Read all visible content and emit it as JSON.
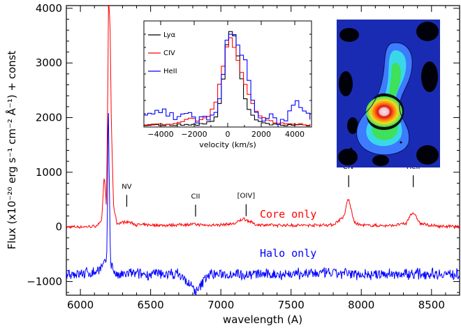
{
  "chart_data": [
    {
      "type": "line",
      "xlabel": "wavelength (A)",
      "ylabel": "Flux (x10⁻²⁰ erg s⁻¹ cm⁻² Å⁻¹) + const",
      "xlim": [
        5900,
        8700
      ],
      "ylim": [
        -1250,
        4050
      ],
      "x_ticks": [
        "6000",
        "6500",
        "7000",
        "7500",
        "8000",
        "8500"
      ],
      "y_ticks": [
        "−1000",
        "0",
        "1000",
        "2000",
        "3000",
        "4000"
      ],
      "line_labels": [
        {
          "text": "NV",
          "x": 6330,
          "y": 700
        },
        {
          "text": "CII",
          "x": 6820,
          "y": 520
        },
        {
          "text": "[OIV]",
          "x": 7180,
          "y": 530
        },
        {
          "text": "CIV",
          "x": 7910,
          "y": 1060
        },
        {
          "text": "HeII",
          "x": 8370,
          "y": 1060
        }
      ],
      "series": [
        {
          "name": "Core only",
          "color": "#ff0000",
          "x": [
            5900,
            6000,
            6100,
            6150,
            6170,
            6185,
            6195,
            6200,
            6205,
            6212,
            6220,
            6235,
            6260,
            6330,
            6400,
            6600,
            6800,
            6900,
            7000,
            7100,
            7160,
            7180,
            7250,
            7400,
            7600,
            7800,
            7880,
            7900,
            7910,
            7925,
            7950,
            8000,
            8200,
            8320,
            8350,
            8370,
            8390,
            8420,
            8500,
            8700
          ],
          "y": [
            0,
            0,
            10,
            80,
            950,
            400,
            2400,
            4050,
            4050,
            3600,
            2000,
            400,
            60,
            100,
            40,
            30,
            50,
            30,
            40,
            60,
            150,
            130,
            40,
            30,
            30,
            40,
            200,
            480,
            500,
            350,
            80,
            30,
            20,
            60,
            230,
            260,
            180,
            60,
            20,
            0
          ]
        },
        {
          "name": "Halo only",
          "color": "#0000ff",
          "x": [
            5900,
            6000,
            6100,
            6150,
            6175,
            6190,
            6198,
            6205,
            6215,
            6230,
            6260,
            6350,
            6500,
            6700,
            6830,
            6900,
            7100,
            7300,
            7500,
            7700,
            7900,
            8100,
            8300,
            8500,
            8700
          ],
          "y": [
            -850,
            -860,
            -830,
            -750,
            -680,
            -500,
            2600,
            900,
            -650,
            -750,
            -900,
            -850,
            -870,
            -860,
            -1200,
            -880,
            -850,
            -870,
            -860,
            -850,
            -860,
            -870,
            -860,
            -850,
            -870
          ]
        }
      ]
    },
    {
      "type": "line",
      "xlabel": "velocity (km/s)",
      "xlim": [
        -5000,
        5000
      ],
      "x_ticks": [
        "−4000",
        "−2000",
        "0",
        "2000",
        "4000"
      ],
      "legend_position": "top-left",
      "series": [
        {
          "name": "Lyα",
          "color": "#000000",
          "x": [
            -5000,
            -2000,
            -1500,
            -1000,
            -700,
            -400,
            -200,
            0,
            150,
            300,
            500,
            700,
            900,
            1200,
            1500,
            2000,
            2500,
            5000
          ],
          "y": [
            0.0,
            0.0,
            0.01,
            0.04,
            0.12,
            0.45,
            0.8,
            0.97,
            1.0,
            0.93,
            0.72,
            0.5,
            0.3,
            0.15,
            0.07,
            0.02,
            0.0,
            0.0
          ]
        },
        {
          "name": "CIV",
          "color": "#ff0000",
          "x": [
            -5000,
            -3000,
            -2200,
            -2000,
            -1600,
            -1200,
            -800,
            -500,
            -200,
            0,
            200,
            400,
            700,
            1000,
            1300,
            1700,
            2200,
            3000,
            5000
          ],
          "y": [
            0.0,
            0.02,
            0.08,
            0.03,
            0.05,
            0.1,
            0.25,
            0.5,
            0.8,
            0.93,
            0.85,
            0.75,
            0.55,
            0.4,
            0.25,
            0.12,
            0.05,
            0.02,
            0.0
          ]
        },
        {
          "name": "HeII",
          "color": "#0000ff",
          "x": [
            -5000,
            -4000,
            -3000,
            -2500,
            -2000,
            -1500,
            -1000,
            -700,
            -400,
            -200,
            0,
            200,
            400,
            600,
            800,
            1000,
            1300,
            1600,
            2000,
            2400,
            3000,
            3500,
            4000,
            4300,
            4700,
            5000
          ],
          "y": [
            0.08,
            0.15,
            0.05,
            0.12,
            0.02,
            0.1,
            0.08,
            0.2,
            0.5,
            0.85,
            0.95,
            1.0,
            0.9,
            0.7,
            0.75,
            0.6,
            0.35,
            0.15,
            0.05,
            0.1,
            0.03,
            0.1,
            0.22,
            0.15,
            0.1,
            0.05
          ]
        }
      ]
    }
  ],
  "colors": {
    "image_cmap": [
      "#000000",
      "#1a2bb3",
      "#3d7bff",
      "#39d8e8",
      "#3fe05a",
      "#e8e020",
      "#ff7a10",
      "#e01010",
      "#ffd0d8"
    ]
  }
}
